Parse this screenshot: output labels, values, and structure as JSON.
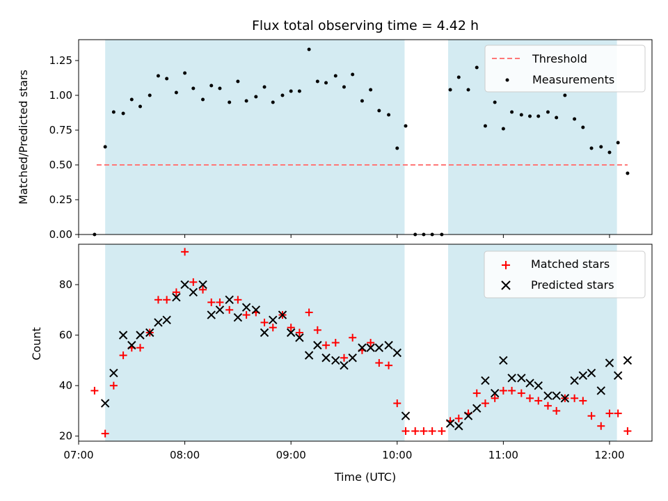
{
  "chart_data": [
    {
      "type": "scatter",
      "title": "Flux total observing time = 4.42 h",
      "ylabel": "Matched/Predicted stars",
      "xlabel": "",
      "ylim": [
        0,
        1.4
      ],
      "yticks": [
        0.0,
        0.25,
        0.5,
        0.75,
        1.0,
        1.25
      ],
      "ytick_labels": [
        "0.00",
        "0.25",
        "0.50",
        "0.75",
        "1.00",
        "1.25"
      ],
      "xlim": [
        7.0,
        12.4
      ],
      "shaded_intervals": [
        [
          7.25,
          10.07
        ],
        [
          10.48,
          12.07
        ]
      ],
      "shade_color": "#add8e6",
      "threshold": {
        "label": "Threshold",
        "value": 0.5,
        "x_range": [
          7.17,
          12.17
        ],
        "color": "#ff7777"
      },
      "legend": [
        "Threshold",
        "Measurements"
      ],
      "legend_position": "top-right",
      "series": [
        {
          "name": "Measurements",
          "color": "#000000",
          "x": [
            7.15,
            7.25,
            7.33,
            7.42,
            7.5,
            7.58,
            7.67,
            7.75,
            7.83,
            7.92,
            8.0,
            8.08,
            8.17,
            8.25,
            8.33,
            8.42,
            8.5,
            8.58,
            8.67,
            8.75,
            8.83,
            8.92,
            9.0,
            9.08,
            9.17,
            9.25,
            9.33,
            9.42,
            9.5,
            9.58,
            9.67,
            9.75,
            9.83,
            9.92,
            10.0,
            10.08,
            10.17,
            10.25,
            10.33,
            10.42,
            10.5,
            10.58,
            10.67,
            10.75,
            10.83,
            10.92,
            11.0,
            11.08,
            11.17,
            11.25,
            11.33,
            11.42,
            11.5,
            11.58,
            11.67,
            11.75,
            11.83,
            11.92,
            12.0,
            12.08,
            12.17
          ],
          "y": [
            0.0,
            0.63,
            0.88,
            0.87,
            0.97,
            0.92,
            1.0,
            1.14,
            1.12,
            1.02,
            1.16,
            1.05,
            0.97,
            1.07,
            1.05,
            0.95,
            1.1,
            0.96,
            0.99,
            1.06,
            0.95,
            1.0,
            1.03,
            1.03,
            1.33,
            1.1,
            1.09,
            1.14,
            1.06,
            1.15,
            0.96,
            1.04,
            0.89,
            0.86,
            0.62,
            0.78,
            0.0,
            0.0,
            0.0,
            0.0,
            1.04,
            1.13,
            1.04,
            1.2,
            0.78,
            0.95,
            0.76,
            0.88,
            0.86,
            0.85,
            0.85,
            0.88,
            0.84,
            1.0,
            0.83,
            0.77,
            0.62,
            0.63,
            0.59,
            0.66,
            0.44
          ]
        }
      ]
    },
    {
      "type": "scatter",
      "title": "",
      "ylabel": "Count",
      "xlabel": "Time (UTC)",
      "ylim": [
        18,
        96
      ],
      "yticks": [
        20,
        40,
        60,
        80
      ],
      "ytick_labels": [
        "20",
        "40",
        "60",
        "80"
      ],
      "xlim": [
        7.0,
        12.4
      ],
      "xticks": [
        7,
        8,
        9,
        10,
        11,
        12
      ],
      "xtick_labels": [
        "07:00",
        "08:00",
        "09:00",
        "10:00",
        "11:00",
        "12:00"
      ],
      "shaded_intervals": [
        [
          7.25,
          10.07
        ],
        [
          10.48,
          12.07
        ]
      ],
      "shade_color": "#add8e6",
      "legend": [
        "Matched stars",
        "Predicted stars"
      ],
      "legend_position": "top-right",
      "series": [
        {
          "name": "Matched stars",
          "marker": "plus",
          "color": "#ff0000",
          "x": [
            7.15,
            7.25,
            7.33,
            7.42,
            7.5,
            7.58,
            7.67,
            7.75,
            7.83,
            7.92,
            8.0,
            8.08,
            8.17,
            8.25,
            8.33,
            8.42,
            8.5,
            8.58,
            8.67,
            8.75,
            8.83,
            8.92,
            9.0,
            9.08,
            9.17,
            9.25,
            9.33,
            9.42,
            9.5,
            9.58,
            9.67,
            9.75,
            9.83,
            9.92,
            10.0,
            10.08,
            10.17,
            10.25,
            10.33,
            10.42,
            10.5,
            10.58,
            10.67,
            10.75,
            10.83,
            10.92,
            11.0,
            11.08,
            11.17,
            11.25,
            11.33,
            11.42,
            11.5,
            11.58,
            11.67,
            11.75,
            11.83,
            11.92,
            12.0,
            12.08,
            12.17
          ],
          "y": [
            38,
            21,
            40,
            52,
            55,
            55,
            61,
            74,
            74,
            77,
            93,
            81,
            78,
            73,
            73,
            70,
            74,
            68,
            69,
            65,
            63,
            68,
            63,
            61,
            69,
            62,
            56,
            57,
            51,
            59,
            54,
            57,
            49,
            48,
            33,
            22,
            22,
            22,
            22,
            22,
            26,
            27,
            29,
            37,
            33,
            35,
            38,
            38,
            37,
            35,
            34,
            32,
            30,
            35,
            35,
            34,
            28,
            24,
            29,
            29,
            22
          ]
        },
        {
          "name": "Predicted stars",
          "marker": "x",
          "color": "#000000",
          "x": [
            7.25,
            7.33,
            7.42,
            7.5,
            7.58,
            7.67,
            7.75,
            7.83,
            7.92,
            8.0,
            8.08,
            8.17,
            8.25,
            8.33,
            8.42,
            8.5,
            8.58,
            8.67,
            8.75,
            8.83,
            8.92,
            9.0,
            9.08,
            9.17,
            9.25,
            9.33,
            9.42,
            9.5,
            9.58,
            9.67,
            9.75,
            9.83,
            9.92,
            10.0,
            10.08,
            10.5,
            10.58,
            10.67,
            10.75,
            10.83,
            10.92,
            11.0,
            11.08,
            11.17,
            11.25,
            11.33,
            11.42,
            11.5,
            11.58,
            11.67,
            11.75,
            11.83,
            11.92,
            12.0,
            12.08,
            12.17
          ],
          "y": [
            33,
            45,
            60,
            56,
            60,
            61,
            65,
            66,
            75,
            80,
            77,
            80,
            68,
            70,
            74,
            67,
            71,
            70,
            61,
            66,
            68,
            61,
            59,
            52,
            56,
            51,
            50,
            48,
            51,
            55,
            55,
            55,
            56,
            53,
            28,
            25,
            24,
            28,
            31,
            42,
            37,
            50,
            43,
            43,
            41,
            40,
            36,
            36,
            35,
            42,
            44,
            45,
            38,
            49,
            44,
            50
          ]
        }
      ]
    }
  ]
}
